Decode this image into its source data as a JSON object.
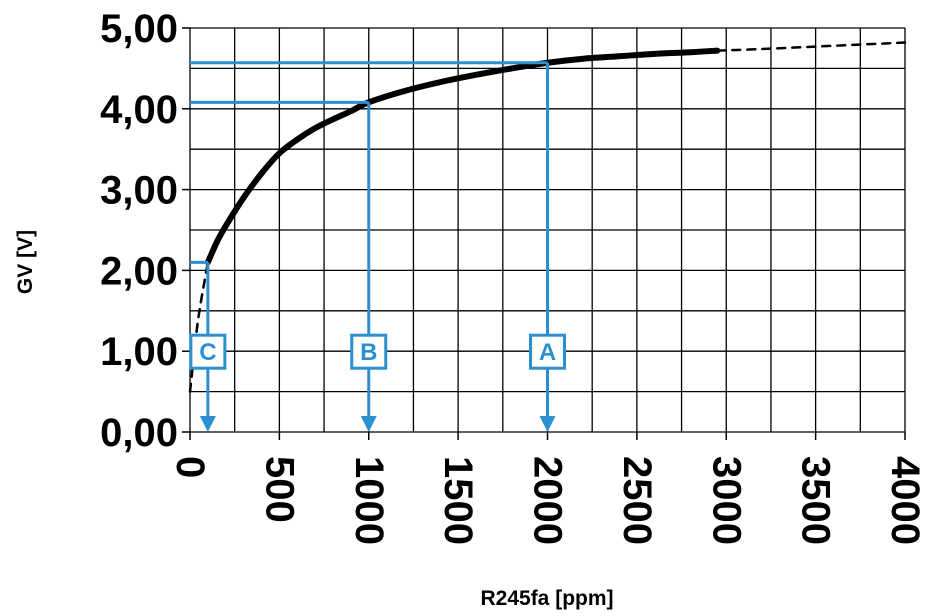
{
  "chart_data": {
    "type": "line",
    "title": "",
    "xlabel": "R245fa [ppm]",
    "ylabel": "GV [V]",
    "xlim": [
      0,
      4000
    ],
    "ylim": [
      0,
      5
    ],
    "x_ticks": [
      0,
      500,
      1000,
      1500,
      2000,
      2500,
      3000,
      3500,
      4000
    ],
    "x_tick_labels": [
      "0",
      "500",
      "1000",
      "1500",
      "2000",
      "2500",
      "3000",
      "3500",
      "4000"
    ],
    "y_ticks": [
      0,
      1,
      2,
      3,
      4,
      5
    ],
    "y_tick_labels": [
      "0,00",
      "1,00",
      "2,00",
      "3,00",
      "4,00",
      "5,00"
    ],
    "grid": true,
    "series": [
      {
        "style": "solid",
        "color": "#000000",
        "x": [
          100,
          150,
          200,
          300,
          400,
          500,
          600,
          700,
          800,
          900,
          1000,
          1200,
          1400,
          1600,
          1800,
          2000,
          2200,
          2400,
          2600,
          2800,
          2950
        ],
        "y": [
          2.1,
          2.35,
          2.55,
          2.9,
          3.2,
          3.45,
          3.62,
          3.76,
          3.87,
          3.97,
          4.08,
          4.22,
          4.33,
          4.42,
          4.5,
          4.57,
          4.62,
          4.65,
          4.68,
          4.7,
          4.72
        ]
      },
      {
        "style": "dashed",
        "color": "#000000",
        "x": [
          2950,
          3200,
          3500,
          3800,
          4000
        ],
        "y": [
          4.72,
          4.74,
          4.77,
          4.8,
          4.82
        ]
      },
      {
        "style": "dashed",
        "color": "#000000",
        "x": [
          0,
          20,
          40,
          60,
          80,
          100
        ],
        "y": [
          0.5,
          0.9,
          1.3,
          1.6,
          1.85,
          2.1
        ]
      }
    ],
    "markers": [
      {
        "label": "A",
        "x": 2000,
        "y": 4.57,
        "label_y": 1.0
      },
      {
        "label": "B",
        "x": 1000,
        "y": 4.08,
        "label_y": 1.0
      },
      {
        "label": "C",
        "x": 100,
        "y": 2.1,
        "label_y": 1.0
      }
    ],
    "marker_color": "#2b8fd0"
  }
}
